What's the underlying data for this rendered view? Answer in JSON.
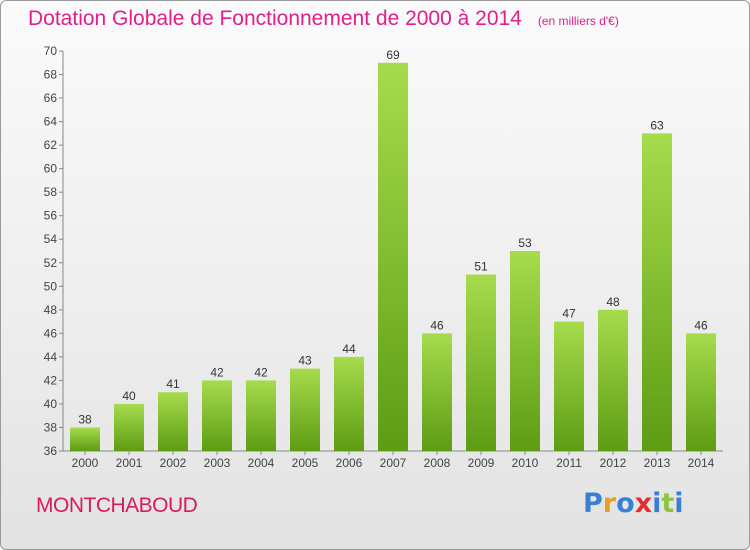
{
  "header": {
    "title": "Dotation Globale de Fonctionnement de 2000 à 2014",
    "unit": "(en milliers d'€)"
  },
  "footer": {
    "commune": "MONTCHABOUD",
    "logo_text": "Proxiti"
  },
  "colors": {
    "title": "#e0208a",
    "commune": "#d81b60",
    "bar_light": "#a6dc4c",
    "bar_dark": "#5e9c14",
    "logo": [
      "#3a7fd6",
      "#e8a020",
      "#3a7fd6",
      "#e03030",
      "#3a7fd6",
      "#8cc63f",
      "#3a7fd6"
    ]
  },
  "chart_data": {
    "type": "bar",
    "title": "Dotation Globale de Fonctionnement de 2000 à 2014",
    "subtitle": "(en milliers d'€)",
    "xlabel": "",
    "ylabel": "",
    "categories": [
      "2000",
      "2001",
      "2002",
      "2003",
      "2004",
      "2005",
      "2006",
      "2007",
      "2008",
      "2009",
      "2010",
      "2011",
      "2012",
      "2013",
      "2014"
    ],
    "values": [
      38,
      40,
      41,
      42,
      42,
      43,
      44,
      69,
      46,
      51,
      53,
      47,
      48,
      63,
      46
    ],
    "ylim": [
      36,
      70
    ],
    "yticks": [
      36,
      38,
      40,
      42,
      44,
      46,
      48,
      50,
      52,
      54,
      56,
      58,
      60,
      62,
      64,
      66,
      68,
      70
    ],
    "grid": false,
    "legend": "none"
  }
}
